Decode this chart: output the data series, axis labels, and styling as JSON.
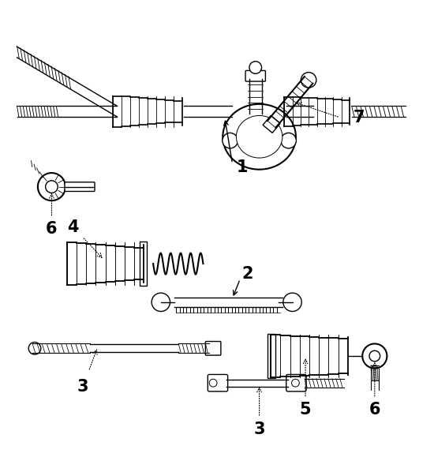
{
  "bg_color": "#ffffff",
  "line_color": "#000000",
  "fig_width": 5.5,
  "fig_height": 5.98,
  "dpi": 100
}
